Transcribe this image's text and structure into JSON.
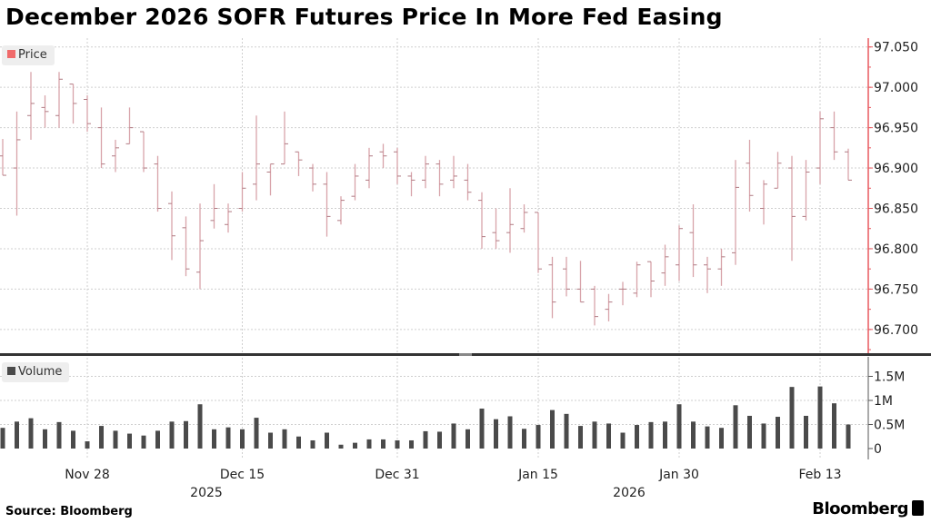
{
  "title": "December 2026 SOFR Futures Price In More Fed Easing",
  "source": "Source: Bloomberg",
  "logo": "Bloomberg",
  "colors": {
    "price_bar": "#d8a3aa",
    "price_axis": "#e8585f",
    "volume_bar": "#4a4a4a",
    "grid": "#cfcfcf",
    "divider": "#333333"
  },
  "chart_data": [
    {
      "type": "ohlc",
      "legend": "Price",
      "ylim": [
        96.675,
        97.065
      ],
      "yticks": [
        "96.700",
        "96.750",
        "96.800",
        "96.850",
        "96.900",
        "96.950",
        "97.000",
        "97.050"
      ],
      "axis_side": "right",
      "grid": true,
      "x": [
        "2025-11-19",
        "2025-11-20",
        "2025-11-21",
        "2025-11-24",
        "2025-11-25",
        "2025-11-26",
        "2025-11-28",
        "2025-12-01",
        "2025-12-02",
        "2025-12-03",
        "2025-12-04",
        "2025-12-05",
        "2025-12-08",
        "2025-12-09",
        "2025-12-10",
        "2025-12-11",
        "2025-12-12",
        "2025-12-15",
        "2025-12-16",
        "2025-12-17",
        "2025-12-18",
        "2025-12-19",
        "2025-12-22",
        "2025-12-23",
        "2025-12-24",
        "2025-12-26",
        "2025-12-29",
        "2025-12-30",
        "2025-12-31",
        "2026-01-02",
        "2026-01-05",
        "2026-01-06",
        "2026-01-07",
        "2026-01-08",
        "2026-01-09",
        "2026-01-12",
        "2026-01-13",
        "2026-01-14",
        "2026-01-15",
        "2026-01-16",
        "2026-01-20",
        "2026-01-21",
        "2026-01-22",
        "2026-01-23",
        "2026-01-26",
        "2026-01-27",
        "2026-01-28",
        "2026-01-29",
        "2026-01-30",
        "2026-02-02",
        "2026-02-03",
        "2026-02-04",
        "2026-02-05",
        "2026-02-06",
        "2026-02-09",
        "2026-02-10",
        "2026-02-11",
        "2026-02-12",
        "2026-02-13",
        "2026-02-17",
        "2026-02-18"
      ],
      "ohlc": [
        [
          96.915,
          96.936,
          96.891,
          96.891
        ],
        [
          96.9,
          96.97,
          96.841,
          96.935
        ],
        [
          96.965,
          97.019,
          96.935,
          96.98
        ],
        [
          96.975,
          96.99,
          96.95,
          96.97
        ],
        [
          96.965,
          97.019,
          96.95,
          97.01
        ],
        [
          97.004,
          97.004,
          96.955,
          96.98
        ],
        [
          96.985,
          96.99,
          96.945,
          96.955
        ],
        [
          96.95,
          96.975,
          96.9,
          96.905
        ],
        [
          96.915,
          96.935,
          96.895,
          96.925
        ],
        [
          96.93,
          96.975,
          96.93,
          96.95
        ],
        [
          96.945,
          96.945,
          96.895,
          96.9
        ],
        [
          96.905,
          96.915,
          96.846,
          96.85
        ],
        [
          96.856,
          96.871,
          96.786,
          96.816
        ],
        [
          96.826,
          96.84,
          96.766,
          96.775
        ],
        [
          96.771,
          96.856,
          96.75,
          96.81
        ],
        [
          96.835,
          96.88,
          96.825,
          96.85
        ],
        [
          96.83,
          96.856,
          96.82,
          96.846
        ],
        [
          96.85,
          96.895,
          96.846,
          96.875
        ],
        [
          96.88,
          96.965,
          96.86,
          96.905
        ],
        [
          96.895,
          96.905,
          96.866,
          96.905
        ],
        [
          96.905,
          96.97,
          96.905,
          96.93
        ],
        [
          96.92,
          96.92,
          96.89,
          96.91
        ],
        [
          96.9,
          96.905,
          96.871,
          96.88
        ],
        [
          96.88,
          96.895,
          96.815,
          96.84
        ],
        [
          96.835,
          96.865,
          96.83,
          96.86
        ],
        [
          96.865,
          96.905,
          96.86,
          96.89
        ],
        [
          96.885,
          96.925,
          96.875,
          96.915
        ],
        [
          96.92,
          96.93,
          96.9,
          96.915
        ],
        [
          96.92,
          96.925,
          96.88,
          96.89
        ],
        [
          96.89,
          96.895,
          96.865,
          96.885
        ],
        [
          96.885,
          96.915,
          96.875,
          96.905
        ],
        [
          96.905,
          96.91,
          96.865,
          96.88
        ],
        [
          96.885,
          96.915,
          96.875,
          96.89
        ],
        [
          96.885,
          96.905,
          96.86,
          96.87
        ],
        [
          96.86,
          96.87,
          96.8,
          96.815
        ],
        [
          96.82,
          96.85,
          96.8,
          96.81
        ],
        [
          96.82,
          96.875,
          96.795,
          96.83
        ],
        [
          96.825,
          96.855,
          96.82,
          96.845
        ],
        [
          96.845,
          96.845,
          96.77,
          96.775
        ],
        [
          96.78,
          96.79,
          96.714,
          96.734
        ],
        [
          96.775,
          96.79,
          96.741,
          96.75
        ],
        [
          96.75,
          96.785,
          96.734,
          96.734
        ],
        [
          96.75,
          96.754,
          96.705,
          96.716
        ],
        [
          96.725,
          96.744,
          96.71,
          96.734
        ],
        [
          96.75,
          96.759,
          96.73,
          96.75
        ],
        [
          96.745,
          96.784,
          96.74,
          96.78
        ],
        [
          96.784,
          96.784,
          96.74,
          96.76
        ],
        [
          96.77,
          96.805,
          96.754,
          96.79
        ],
        [
          96.78,
          96.829,
          96.76,
          96.825
        ],
        [
          96.82,
          96.855,
          96.765,
          96.78
        ],
        [
          96.78,
          96.79,
          96.745,
          96.775
        ],
        [
          96.775,
          96.8,
          96.754,
          96.79
        ],
        [
          96.795,
          96.91,
          96.78,
          96.876
        ],
        [
          96.906,
          96.935,
          96.846,
          96.866
        ],
        [
          96.85,
          96.885,
          96.83,
          96.88
        ],
        [
          96.875,
          96.92,
          96.875,
          96.906
        ],
        [
          96.9,
          96.915,
          96.785,
          96.84
        ],
        [
          96.84,
          96.91,
          96.835,
          96.895
        ],
        [
          96.9,
          96.97,
          96.88,
          96.961
        ],
        [
          96.95,
          96.97,
          96.91,
          96.92
        ],
        [
          96.92,
          96.924,
          96.885,
          96.885
        ]
      ]
    },
    {
      "type": "bar",
      "legend": "Volume",
      "ylim": [
        0,
        1.8
      ],
      "yticks": [
        {
          "v": 0,
          "label": "0"
        },
        {
          "v": 0.5,
          "label": "0.5M"
        },
        {
          "v": 1,
          "label": "1M"
        },
        {
          "v": 1.5,
          "label": "1.5M"
        }
      ],
      "unit": "M",
      "axis_side": "right",
      "grid": true,
      "values": [
        0.43,
        0.56,
        0.63,
        0.4,
        0.55,
        0.37,
        0.15,
        0.47,
        0.37,
        0.31,
        0.27,
        0.37,
        0.56,
        0.57,
        0.92,
        0.4,
        0.44,
        0.4,
        0.64,
        0.33,
        0.4,
        0.25,
        0.17,
        0.33,
        0.08,
        0.12,
        0.19,
        0.19,
        0.17,
        0.17,
        0.36,
        0.35,
        0.52,
        0.4,
        0.83,
        0.61,
        0.67,
        0.41,
        0.49,
        0.8,
        0.72,
        0.47,
        0.56,
        0.52,
        0.33,
        0.49,
        0.55,
        0.56,
        0.92,
        0.56,
        0.46,
        0.43,
        0.9,
        0.68,
        0.52,
        0.66,
        1.28,
        0.68,
        1.29,
        0.94,
        0.5
      ]
    }
  ],
  "xaxis": {
    "ticks": [
      {
        "date": "2025-11-28",
        "label": "Nov 28"
      },
      {
        "date": "2025-12-15",
        "label": "Dec 15"
      },
      {
        "date": "2025-12-31",
        "label": "Dec 31"
      },
      {
        "date": "2026-01-15",
        "label": "Jan 15"
      },
      {
        "date": "2026-01-30",
        "label": "Jan 30"
      },
      {
        "date": "2026-02-13",
        "label": "Feb 13"
      }
    ],
    "years": [
      {
        "date": "2025-12-16",
        "label": "2025"
      },
      {
        "date": "2026-01-30",
        "label": "2026"
      }
    ]
  }
}
